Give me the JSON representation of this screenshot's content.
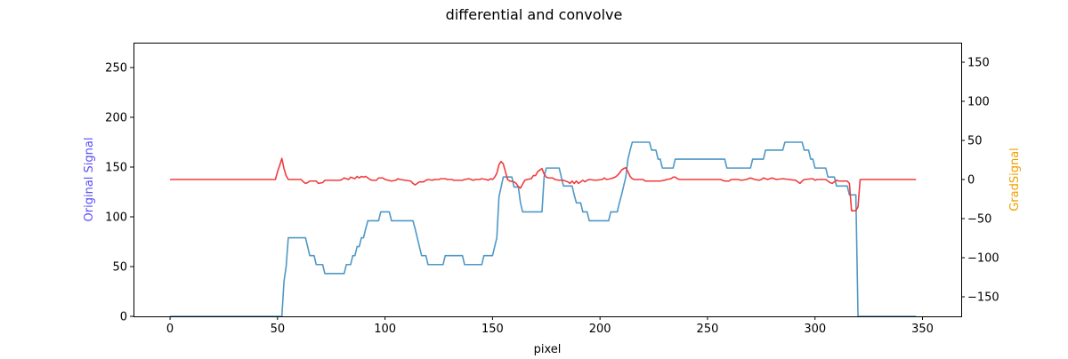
{
  "colors": {
    "original": "#4f98c6",
    "grad": "#f03c3c",
    "left_label": "#5b4ff5",
    "right_label": "#f0a000",
    "axis": "#000000"
  },
  "chart_data": {
    "type": "line",
    "title": "differential and convolve",
    "xlabel": "pixel",
    "ylabel_left": "Original Signal",
    "ylabel_right": "GradSignal",
    "xlim": [
      -17,
      368
    ],
    "ylim_left": [
      0,
      275
    ],
    "ylim_right": [
      -175,
      175
    ],
    "xticks": [
      0,
      50,
      100,
      150,
      200,
      250,
      300,
      350
    ],
    "xtick_labels": [
      "0",
      "50",
      "100",
      "150",
      "200",
      "250",
      "300",
      "350"
    ],
    "yticks_left": [
      0,
      50,
      100,
      150,
      200,
      250
    ],
    "ytick_labels_left": [
      "0",
      "50",
      "100",
      "150",
      "200",
      "250"
    ],
    "yticks_right": [
      -150,
      -100,
      -50,
      0,
      50,
      100,
      150
    ],
    "ytick_labels_right": [
      "−150",
      "−100",
      "−50",
      "0",
      "50",
      "100",
      "150"
    ],
    "grid": false,
    "series": [
      {
        "axis": "left",
        "color": "#4f98c6",
        "points": [
          [
            0,
            0
          ],
          [
            51,
            0
          ],
          [
            52,
            0
          ],
          [
            53,
            35
          ],
          [
            54,
            50
          ],
          [
            55,
            79
          ],
          [
            63,
            79
          ],
          [
            64,
            70
          ],
          [
            65,
            61
          ],
          [
            67,
            61
          ],
          [
            68,
            52
          ],
          [
            71,
            52
          ],
          [
            72,
            43
          ],
          [
            81,
            43
          ],
          [
            82,
            52
          ],
          [
            84,
            52
          ],
          [
            85,
            61
          ],
          [
            86,
            61
          ],
          [
            87,
            70
          ],
          [
            88,
            70
          ],
          [
            89,
            79
          ],
          [
            90,
            79
          ],
          [
            91,
            88
          ],
          [
            92,
            96
          ],
          [
            97,
            96
          ],
          [
            98,
            105
          ],
          [
            102,
            105
          ],
          [
            103,
            96
          ],
          [
            113,
            96
          ],
          [
            114,
            88
          ],
          [
            115,
            79
          ],
          [
            116,
            70
          ],
          [
            117,
            61
          ],
          [
            119,
            61
          ],
          [
            120,
            52
          ],
          [
            127,
            52
          ],
          [
            128,
            61
          ],
          [
            136,
            61
          ],
          [
            137,
            52
          ],
          [
            145,
            52
          ],
          [
            146,
            61
          ],
          [
            150,
            61
          ],
          [
            151,
            70
          ],
          [
            152,
            79
          ],
          [
            153,
            120
          ],
          [
            154,
            130
          ],
          [
            155,
            140
          ],
          [
            159,
            140
          ],
          [
            160,
            130
          ],
          [
            162,
            130
          ],
          [
            163,
            114
          ],
          [
            164,
            105
          ],
          [
            173,
            105
          ],
          [
            174,
            140
          ],
          [
            175,
            149
          ],
          [
            181,
            149
          ],
          [
            182,
            140
          ],
          [
            183,
            131
          ],
          [
            187,
            131
          ],
          [
            188,
            122
          ],
          [
            189,
            114
          ],
          [
            191,
            114
          ],
          [
            192,
            105
          ],
          [
            194,
            105
          ],
          [
            195,
            96
          ],
          [
            204,
            96
          ],
          [
            205,
            105
          ],
          [
            208,
            105
          ],
          [
            209,
            114
          ],
          [
            210,
            122
          ],
          [
            211,
            131
          ],
          [
            212,
            140
          ],
          [
            213,
            158
          ],
          [
            214,
            167
          ],
          [
            215,
            175
          ],
          [
            223,
            175
          ],
          [
            224,
            167
          ],
          [
            226,
            167
          ],
          [
            227,
            158
          ],
          [
            228,
            158
          ],
          [
            229,
            149
          ],
          [
            234,
            149
          ],
          [
            235,
            158
          ],
          [
            258,
            158
          ],
          [
            259,
            149
          ],
          [
            270,
            149
          ],
          [
            271,
            158
          ],
          [
            276,
            158
          ],
          [
            277,
            167
          ],
          [
            285,
            167
          ],
          [
            286,
            175
          ],
          [
            294,
            175
          ],
          [
            295,
            167
          ],
          [
            297,
            167
          ],
          [
            298,
            158
          ],
          [
            299,
            158
          ],
          [
            300,
            149
          ],
          [
            305,
            149
          ],
          [
            306,
            140
          ],
          [
            309,
            140
          ],
          [
            310,
            131
          ],
          [
            315,
            131
          ],
          [
            316,
            122
          ],
          [
            319,
            122
          ],
          [
            320,
            0
          ],
          [
            347,
            0
          ]
        ]
      },
      {
        "axis": "right",
        "color": "#f03c3c",
        "points": [
          [
            0,
            0
          ],
          [
            49,
            0
          ],
          [
            50,
            10
          ],
          [
            51,
            18
          ],
          [
            52,
            27
          ],
          [
            53,
            14
          ],
          [
            54,
            5
          ],
          [
            55,
            0
          ],
          [
            61,
            0
          ],
          [
            62,
            -3
          ],
          [
            63,
            -5
          ],
          [
            64,
            -4
          ],
          [
            65,
            -2
          ],
          [
            68,
            -2
          ],
          [
            69,
            -5
          ],
          [
            71,
            -4
          ],
          [
            72,
            -1
          ],
          [
            79,
            -1
          ],
          [
            80,
            0
          ],
          [
            81,
            2
          ],
          [
            82,
            1
          ],
          [
            83,
            0
          ],
          [
            84,
            3
          ],
          [
            86,
            1
          ],
          [
            87,
            4
          ],
          [
            88,
            2
          ],
          [
            89,
            4
          ],
          [
            90,
            3
          ],
          [
            91,
            4
          ],
          [
            92,
            2
          ],
          [
            93,
            0
          ],
          [
            94,
            -1
          ],
          [
            96,
            -1
          ],
          [
            97,
            2
          ],
          [
            99,
            2
          ],
          [
            100,
            0
          ],
          [
            103,
            -2
          ],
          [
            105,
            -1
          ],
          [
            106,
            1
          ],
          [
            107,
            0
          ],
          [
            112,
            -2
          ],
          [
            113,
            -5
          ],
          [
            114,
            -7
          ],
          [
            115,
            -5
          ],
          [
            116,
            -3
          ],
          [
            118,
            -3
          ],
          [
            119,
            -1
          ],
          [
            120,
            0
          ],
          [
            122,
            -1
          ],
          [
            123,
            0
          ],
          [
            125,
            0
          ],
          [
            126,
            1
          ],
          [
            128,
            1
          ],
          [
            129,
            0
          ],
          [
            131,
            0
          ],
          [
            132,
            -1
          ],
          [
            136,
            -1
          ],
          [
            137,
            0
          ],
          [
            139,
            1
          ],
          [
            140,
            0
          ],
          [
            141,
            -1
          ],
          [
            142,
            0
          ],
          [
            144,
            0
          ],
          [
            145,
            1
          ],
          [
            147,
            0
          ],
          [
            148,
            -1
          ],
          [
            149,
            1
          ],
          [
            150,
            0
          ],
          [
            151,
            3
          ],
          [
            152,
            8
          ],
          [
            153,
            19
          ],
          [
            154,
            23
          ],
          [
            155,
            20
          ],
          [
            156,
            10
          ],
          [
            157,
            0
          ],
          [
            158,
            -2
          ],
          [
            160,
            -3
          ],
          [
            161,
            -5
          ],
          [
            162,
            -9
          ],
          [
            163,
            -11
          ],
          [
            164,
            -6
          ],
          [
            165,
            -1
          ],
          [
            166,
            0
          ],
          [
            168,
            1
          ],
          [
            169,
            5
          ],
          [
            170,
            5
          ],
          [
            171,
            10
          ],
          [
            172,
            12
          ],
          [
            173,
            14
          ],
          [
            174,
            7
          ],
          [
            175,
            3
          ],
          [
            176,
            2
          ],
          [
            178,
            2
          ],
          [
            179,
            0
          ],
          [
            181,
            -1
          ],
          [
            183,
            -1
          ],
          [
            185,
            -3
          ],
          [
            186,
            -5
          ],
          [
            187,
            -2
          ],
          [
            188,
            -5
          ],
          [
            189,
            -2
          ],
          [
            190,
            -5
          ],
          [
            191,
            -3
          ],
          [
            192,
            -1
          ],
          [
            193,
            -3
          ],
          [
            194,
            -1
          ],
          [
            195,
            0
          ],
          [
            198,
            -1
          ],
          [
            201,
            0
          ],
          [
            202,
            2
          ],
          [
            203,
            0
          ],
          [
            205,
            1
          ],
          [
            206,
            2
          ],
          [
            207,
            3
          ],
          [
            208,
            5
          ],
          [
            209,
            8
          ],
          [
            210,
            12
          ],
          [
            211,
            14
          ],
          [
            212,
            15
          ],
          [
            213,
            10
          ],
          [
            214,
            4
          ],
          [
            215,
            1
          ],
          [
            216,
            0
          ],
          [
            220,
            0
          ],
          [
            221,
            -2
          ],
          [
            228,
            -2
          ],
          [
            230,
            -1
          ],
          [
            231,
            0
          ],
          [
            233,
            1
          ],
          [
            234,
            3
          ],
          [
            235,
            3
          ],
          [
            236,
            1
          ],
          [
            237,
            0
          ],
          [
            256,
            0
          ],
          [
            258,
            -2
          ],
          [
            260,
            -2
          ],
          [
            261,
            0
          ],
          [
            264,
            0
          ],
          [
            266,
            -1
          ],
          [
            268,
            0
          ],
          [
            269,
            1
          ],
          [
            270,
            2
          ],
          [
            272,
            0
          ],
          [
            274,
            -1
          ],
          [
            275,
            0
          ],
          [
            276,
            2
          ],
          [
            278,
            0
          ],
          [
            280,
            2
          ],
          [
            282,
            0
          ],
          [
            285,
            1
          ],
          [
            288,
            0
          ],
          [
            291,
            -1
          ],
          [
            292,
            -3
          ],
          [
            293,
            -5
          ],
          [
            294,
            -2
          ],
          [
            295,
            0
          ],
          [
            299,
            1
          ],
          [
            300,
            -1
          ],
          [
            301,
            0
          ],
          [
            305,
            0
          ],
          [
            306,
            -2
          ],
          [
            307,
            -4
          ],
          [
            308,
            -5
          ],
          [
            309,
            -3
          ],
          [
            310,
            -1
          ],
          [
            311,
            -2
          ],
          [
            315,
            -2
          ],
          [
            316,
            -5
          ],
          [
            317,
            -40
          ],
          [
            318,
            -40
          ],
          [
            319,
            -40
          ],
          [
            320,
            -35
          ],
          [
            321,
            0
          ],
          [
            347,
            0
          ]
        ]
      }
    ]
  }
}
